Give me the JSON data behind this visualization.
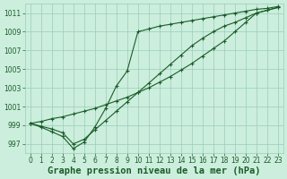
{
  "background_color": "#cceedd",
  "grid_color": "#99ccbb",
  "line_color": "#1a5c28",
  "marker_color": "#1a5c28",
  "title": "Graphe pression niveau de la mer (hPa)",
  "xlim": [
    -0.5,
    23.5
  ],
  "ylim": [
    996.0,
    1012.0
  ],
  "xticks": [
    0,
    1,
    2,
    3,
    4,
    5,
    6,
    7,
    8,
    9,
    10,
    11,
    12,
    13,
    14,
    15,
    16,
    17,
    18,
    19,
    20,
    21,
    22,
    23
  ],
  "yticks": [
    997,
    999,
    1001,
    1003,
    1005,
    1007,
    1009,
    1011
  ],
  "series1": {
    "x": [
      0,
      1,
      2,
      3,
      4,
      5,
      6,
      7,
      8,
      9,
      10,
      11,
      12,
      13,
      14,
      15,
      16,
      17,
      18,
      19,
      20,
      21,
      22,
      23
    ],
    "y": [
      999.2,
      999.4,
      999.7,
      999.9,
      1000.2,
      1000.5,
      1000.8,
      1001.2,
      1001.6,
      1002.0,
      1002.5,
      1003.0,
      1003.6,
      1004.2,
      1004.9,
      1005.6,
      1006.4,
      1007.2,
      1008.0,
      1009.0,
      1010.0,
      1011.0,
      1011.3,
      1011.6
    ]
  },
  "series2": {
    "x": [
      0,
      1,
      2,
      3,
      4,
      5,
      6,
      7,
      8,
      9,
      10,
      11,
      12,
      13,
      14,
      15,
      16,
      17,
      18,
      19,
      20,
      21,
      22,
      23
    ],
    "y": [
      999.2,
      998.9,
      998.6,
      998.2,
      997.0,
      997.5,
      998.5,
      999.5,
      1000.5,
      1001.5,
      1002.5,
      1003.5,
      1004.5,
      1005.5,
      1006.5,
      1007.5,
      1008.3,
      1009.0,
      1009.6,
      1010.0,
      1010.5,
      1011.0,
      1011.3,
      1011.6
    ]
  },
  "series3": {
    "x": [
      0,
      1,
      2,
      3,
      4,
      5,
      6,
      7,
      8,
      9,
      10,
      11,
      12,
      13,
      14,
      15,
      16,
      17,
      18,
      19,
      20,
      21,
      22,
      23
    ],
    "y": [
      999.2,
      998.8,
      998.3,
      997.8,
      996.5,
      997.2,
      998.8,
      1000.8,
      1003.2,
      1004.8,
      1009.0,
      1009.3,
      1009.6,
      1009.8,
      1010.0,
      1010.2,
      1010.4,
      1010.6,
      1010.8,
      1011.0,
      1011.2,
      1011.4,
      1011.5,
      1011.7
    ]
  },
  "title_fontsize": 7.5,
  "tick_fontsize": 5.5
}
